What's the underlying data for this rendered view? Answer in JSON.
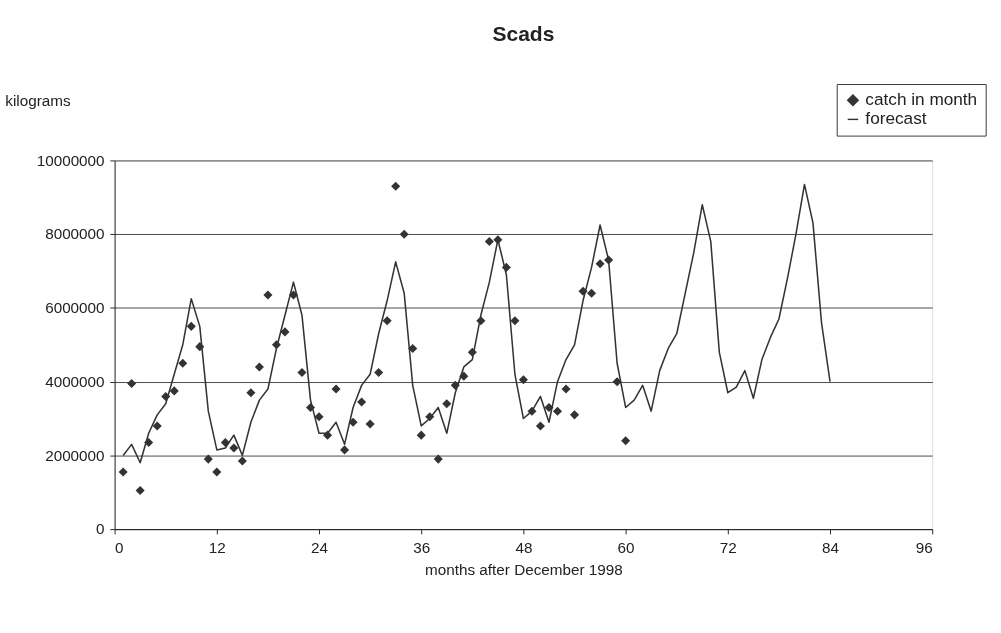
{
  "chart_data": {
    "type": "scatter",
    "title": "Scads",
    "xlabel": "months after December 1998",
    "ylabel": "kilograms",
    "xlim": [
      0,
      96
    ],
    "xticks": [
      0,
      12,
      24,
      36,
      48,
      60,
      72,
      84,
      96
    ],
    "ylim": [
      0,
      10000000
    ],
    "yticks": [
      0,
      2000000,
      4000000,
      6000000,
      8000000,
      10000000
    ],
    "grid": "y",
    "legend": "top right",
    "series": [
      {
        "name": "catch in month",
        "marker": "diamond",
        "color": "#333333",
        "x": [
          1,
          2,
          3,
          4,
          5,
          6,
          7,
          8,
          9,
          10,
          11,
          12,
          13,
          14,
          15,
          16,
          17,
          18,
          19,
          20,
          21,
          22,
          23,
          24,
          25,
          26,
          27,
          28,
          29,
          30,
          31,
          32,
          33,
          34,
          35,
          36,
          37,
          38,
          39,
          40,
          41,
          42,
          43,
          44,
          45,
          46,
          47,
          48,
          49,
          50,
          51,
          52,
          53,
          54,
          55,
          56,
          57,
          58,
          59,
          60
        ],
        "values": [
          1550000,
          3950000,
          1050000,
          2350000,
          2800000,
          3600000,
          3750000,
          4500000,
          5500000,
          4950000,
          1900000,
          1550000,
          2350000,
          2200000,
          1850000,
          3700000,
          4400000,
          6350000,
          5000000,
          5350000,
          6350000,
          4250000,
          3300000,
          3050000,
          2550000,
          3800000,
          2150000,
          2900000,
          3450000,
          2850000,
          4250000,
          5650000,
          9300000,
          8000000,
          4900000,
          2550000,
          3050000,
          1900000,
          3400000,
          3900000,
          4150000,
          4800000,
          5650000,
          7800000,
          7850000,
          7100000,
          5650000,
          4050000,
          3200000,
          2800000,
          3300000,
          3200000,
          3800000,
          3100000,
          6450000,
          6400000,
          7200000,
          7300000,
          4000000,
          2400000
        ]
      },
      {
        "name": "forecast",
        "type": "line",
        "marker": "none",
        "line_style": "solid",
        "color": "#333333",
        "x": [
          1,
          2,
          3,
          4,
          5,
          6,
          7,
          8,
          9,
          10,
          11,
          12,
          13,
          14,
          15,
          16,
          17,
          18,
          19,
          20,
          21,
          22,
          23,
          24,
          25,
          26,
          27,
          28,
          29,
          30,
          31,
          32,
          33,
          34,
          35,
          36,
          37,
          38,
          39,
          40,
          41,
          42,
          43,
          44,
          45,
          46,
          47,
          48,
          49,
          50,
          51,
          52,
          53,
          54,
          55,
          56,
          57,
          58,
          59,
          60,
          61,
          62,
          63,
          64,
          65,
          66,
          67,
          68,
          69,
          70,
          71,
          72,
          73,
          74,
          75,
          76,
          77,
          78,
          79,
          80,
          81,
          82,
          83,
          84
        ],
        "values": [
          2000000,
          2300000,
          1800000,
          2600000,
          3100000,
          3400000,
          4200000,
          5000000,
          6250000,
          5500000,
          3200000,
          2150000,
          2200000,
          2550000,
          2000000,
          2900000,
          3500000,
          3800000,
          4900000,
          5800000,
          6700000,
          5800000,
          3500000,
          2600000,
          2600000,
          2900000,
          2300000,
          3300000,
          3900000,
          4200000,
          5300000,
          6200000,
          7250000,
          6400000,
          3900000,
          2800000,
          3000000,
          3300000,
          2600000,
          3700000,
          4400000,
          4600000,
          5800000,
          6700000,
          7850000,
          6900000,
          4200000,
          3000000,
          3200000,
          3600000,
          2900000,
          4000000,
          4600000,
          5000000,
          6200000,
          7100000,
          8250000,
          7300000,
          4500000,
          3300000,
          3500000,
          3900000,
          3200000,
          4300000,
          4900000,
          5300000,
          6400000,
          7500000,
          8800000,
          7800000,
          4800000,
          3700000,
          3850000,
          4300000,
          3550000,
          4600000,
          5200000,
          5700000,
          6800000,
          8000000,
          9350000,
          8300000,
          5600000,
          4000000
        ]
      }
    ]
  }
}
